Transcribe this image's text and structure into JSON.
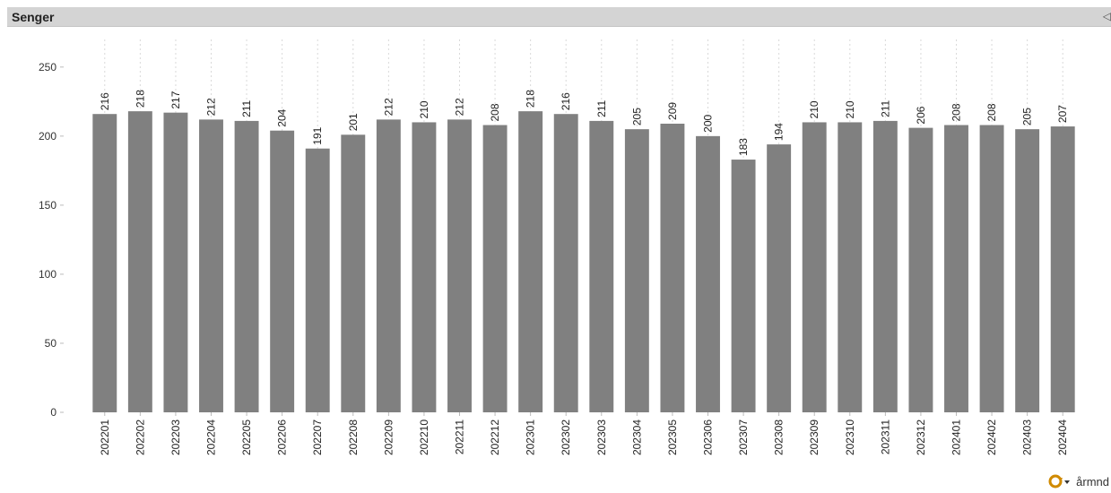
{
  "panel": {
    "title": "Senger",
    "cycle_dimension_label": "årmnd"
  },
  "icons": {
    "caption_tool": "restore-icon",
    "cycle": "cycle-group-icon"
  },
  "colors": {
    "bar": "#808080",
    "caption_bg": "#d4d4d4",
    "grid": "#d9d9d9"
  },
  "chart_data": {
    "type": "bar",
    "title": "Senger",
    "xlabel": "",
    "ylabel": "",
    "categories": [
      "202201",
      "202202",
      "202203",
      "202204",
      "202205",
      "202206",
      "202207",
      "202208",
      "202209",
      "202210",
      "202211",
      "202212",
      "202301",
      "202302",
      "202303",
      "202304",
      "202305",
      "202306",
      "202307",
      "202308",
      "202309",
      "202310",
      "202311",
      "202312",
      "202401",
      "202402",
      "202403",
      "202404"
    ],
    "values": [
      216,
      218,
      217,
      212,
      211,
      204,
      191,
      201,
      212,
      210,
      212,
      208,
      218,
      216,
      211,
      205,
      209,
      200,
      183,
      194,
      210,
      210,
      211,
      206,
      208,
      208,
      205,
      207
    ],
    "ylim": [
      0,
      270
    ],
    "yticks": [
      0,
      50,
      100,
      150,
      200,
      250
    ],
    "grid": "vertical dotted",
    "legend": "none"
  }
}
